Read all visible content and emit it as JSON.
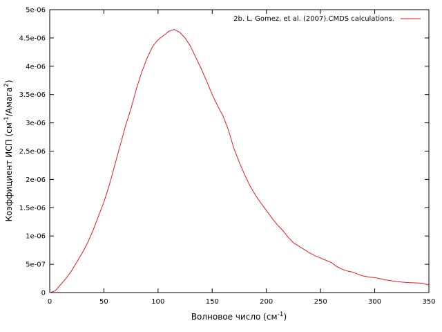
{
  "chart_data": {
    "type": "line",
    "xlabel": {
      "main": "Волновое число (см",
      "sup": "-1",
      "tail": ")"
    },
    "ylabel": {
      "main": "Коэффициент ИСП (см",
      "sup1": "-1",
      "mid": "/Амага",
      "sup2": "2",
      "tail": ")"
    },
    "xlim": [
      0,
      350
    ],
    "ylim": [
      0,
      5e-06
    ],
    "x_ticks": [
      0,
      50,
      100,
      150,
      200,
      250,
      300,
      350
    ],
    "x_tick_labels": [
      "0",
      "50",
      "100",
      "150",
      "200",
      "250",
      "300",
      "350"
    ],
    "y_ticks": [
      0,
      5e-07,
      1e-06,
      1.5e-06,
      2e-06,
      2.5e-06,
      3e-06,
      3.5e-06,
      4e-06,
      4.5e-06,
      5e-06
    ],
    "y_tick_labels": [
      "0",
      "5e-07",
      "1e-06",
      "1.5e-06",
      "2e-06",
      "2.5e-06",
      "3e-06",
      "3.5e-06",
      "4e-06",
      "4.5e-06",
      "5e-06"
    ],
    "grid": false,
    "legend_position": "top-right",
    "series": [
      {
        "name": "2b. L. Gomez, et al. (2007).CMDS calculations.",
        "color": "#e41a1c",
        "points": [
          [
            0,
            0
          ],
          [
            5,
            3e-08
          ],
          [
            10,
            1.4e-07
          ],
          [
            15,
            2.5e-07
          ],
          [
            20,
            3.8e-07
          ],
          [
            25,
            5.4e-07
          ],
          [
            30,
            7e-07
          ],
          [
            35,
            8.8e-07
          ],
          [
            40,
            1.1e-06
          ],
          [
            45,
            1.35e-06
          ],
          [
            50,
            1.6e-06
          ],
          [
            55,
            1.9e-06
          ],
          [
            60,
            2.25e-06
          ],
          [
            65,
            2.6e-06
          ],
          [
            70,
            2.95e-06
          ],
          [
            75,
            3.25e-06
          ],
          [
            80,
            3.6e-06
          ],
          [
            85,
            3.9e-06
          ],
          [
            90,
            4.15e-06
          ],
          [
            95,
            4.35e-06
          ],
          [
            100,
            4.47e-06
          ],
          [
            105,
            4.54e-06
          ],
          [
            110,
            4.62e-06
          ],
          [
            115,
            4.65e-06
          ],
          [
            120,
            4.6e-06
          ],
          [
            125,
            4.5e-06
          ],
          [
            130,
            4.35e-06
          ],
          [
            135,
            4.15e-06
          ],
          [
            140,
            3.95e-06
          ],
          [
            145,
            3.73e-06
          ],
          [
            150,
            3.5e-06
          ],
          [
            155,
            3.3e-06
          ],
          [
            160,
            3.12e-06
          ],
          [
            165,
            2.87e-06
          ],
          [
            170,
            2.55e-06
          ],
          [
            175,
            2.3e-06
          ],
          [
            180,
            2.08e-06
          ],
          [
            185,
            1.88e-06
          ],
          [
            190,
            1.72e-06
          ],
          [
            195,
            1.58e-06
          ],
          [
            200,
            1.45e-06
          ],
          [
            205,
            1.32e-06
          ],
          [
            210,
            1.2e-06
          ],
          [
            215,
            1.1e-06
          ],
          [
            220,
            9.8e-07
          ],
          [
            225,
            8.8e-07
          ],
          [
            230,
            8.2e-07
          ],
          [
            235,
            7.6e-07
          ],
          [
            240,
            7e-07
          ],
          [
            245,
            6.5e-07
          ],
          [
            250,
            6.1e-07
          ],
          [
            255,
            5.7e-07
          ],
          [
            260,
            5.3e-07
          ],
          [
            265,
            4.6e-07
          ],
          [
            270,
            4.1e-07
          ],
          [
            275,
            3.8e-07
          ],
          [
            280,
            3.6e-07
          ],
          [
            285,
            3.2e-07
          ],
          [
            290,
            2.9e-07
          ],
          [
            295,
            2.75e-07
          ],
          [
            300,
            2.65e-07
          ],
          [
            305,
            2.45e-07
          ],
          [
            310,
            2.25e-07
          ],
          [
            315,
            2.1e-07
          ],
          [
            320,
            1.95e-07
          ],
          [
            325,
            1.85e-07
          ],
          [
            330,
            1.78e-07
          ],
          [
            335,
            1.73e-07
          ],
          [
            340,
            1.7e-07
          ],
          [
            345,
            1.6e-07
          ],
          [
            350,
            1.35e-07
          ]
        ]
      }
    ]
  }
}
